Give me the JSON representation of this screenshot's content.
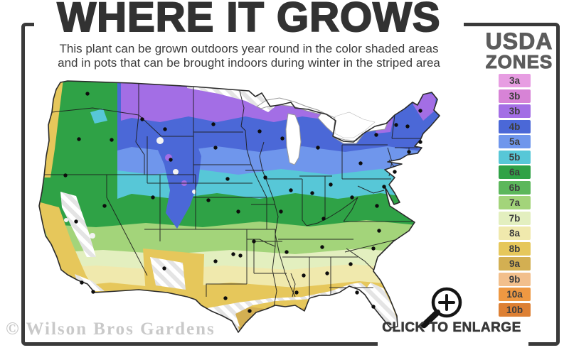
{
  "title": "WHERE IT GROWS",
  "subtitle": {
    "line1": "This plant can be grown outdoors year round in the color shaded areas",
    "line2": "and in pots that can be brought indoors during winter in the striped area"
  },
  "legend": {
    "heading_line1": "USDA",
    "heading_line2": "ZONES",
    "zones": [
      {
        "label": "3a",
        "color": "#e79de2"
      },
      {
        "label": "3b",
        "color": "#d783d6"
      },
      {
        "label": "3b",
        "color": "#a36ee5"
      },
      {
        "label": "4b",
        "color": "#4b68d7"
      },
      {
        "label": "5a",
        "color": "#6f96ec"
      },
      {
        "label": "5b",
        "color": "#57c7d7"
      },
      {
        "label": "6a",
        "color": "#2fa246"
      },
      {
        "label": "6b",
        "color": "#5cb75b"
      },
      {
        "label": "7a",
        "color": "#a3d47a"
      },
      {
        "label": "7b",
        "color": "#e3efbf"
      },
      {
        "label": "8a",
        "color": "#f0e9ad"
      },
      {
        "label": "8b",
        "color": "#e6c75b"
      },
      {
        "label": "9a",
        "color": "#d3af52"
      },
      {
        "label": "9b",
        "color": "#f2bf8c"
      },
      {
        "label": "10a",
        "color": "#ee9842"
      },
      {
        "label": "10b",
        "color": "#dd8034"
      }
    ]
  },
  "map": {
    "marker_color": "#0d0d0d",
    "state_line_color": "#1c1c1c",
    "outline_color": "#2a2a2a",
    "stripe_color": "#e4e4e4",
    "lake_outline_color": "#9a9a9a"
  },
  "frame_color": "#3a3a3a",
  "watermark": "© Wilson Bros Gardens",
  "enlarge": {
    "label": "CLICK TO ENLARGE",
    "icon": "magnifier-plus-icon"
  }
}
